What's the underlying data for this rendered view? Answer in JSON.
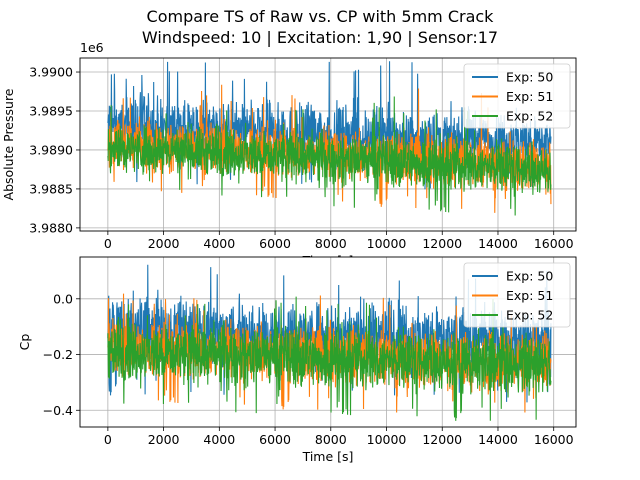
{
  "figure": {
    "title_line1": "Compare TS of Raw vs. CP with 5mm Crack",
    "title_line2": "Windspeed: 10 | Excitation: 1,90 | Sensor:17"
  },
  "chart_data": [
    {
      "type": "line",
      "ylabel": "Absolute Pressure",
      "xlabel": "Time [s]",
      "offset_label": "1e6",
      "xlim": [
        -1000,
        16800
      ],
      "ylim": [
        3.98796,
        3.99018
      ],
      "xticks": [
        0,
        2000,
        4000,
        6000,
        8000,
        10000,
        12000,
        14000,
        16000
      ],
      "xtick_labels": [
        "0",
        "2000",
        "4000",
        "6000",
        "8000",
        "10000",
        "12000",
        "14000",
        "16000"
      ],
      "yticks": [
        3.988,
        3.9885,
        3.989,
        3.9895,
        3.99
      ],
      "ytick_labels": [
        "3.9880",
        "3.9885",
        "3.9890",
        "3.9895",
        "3.9900"
      ],
      "grid": true,
      "legend_position": "top-right",
      "series": [
        {
          "name": "Exp: 50",
          "color": "#1f77b4",
          "x": [
            0,
            15900
          ],
          "upper": [
            3.9899,
            3.9896
          ],
          "lower": [
            3.98872,
            3.98858
          ],
          "peak": 3.99015
        },
        {
          "name": "Exp: 51",
          "color": "#ff7f0e",
          "x": [
            0,
            15900
          ],
          "upper": [
            3.98955,
            3.98935
          ],
          "lower": [
            3.98863,
            3.98825
          ],
          "peak": 3.98985
        },
        {
          "name": "Exp: 52",
          "color": "#2ca02c",
          "x": [
            0,
            15900
          ],
          "upper": [
            3.9895,
            3.98925
          ],
          "lower": [
            3.98858,
            3.98822
          ],
          "peak": 3.9897
        }
      ]
    },
    {
      "type": "line",
      "ylabel": "Cp",
      "xlabel": "Time [s]",
      "xlim": [
        -1000,
        16800
      ],
      "ylim": [
        -0.46,
        0.15
      ],
      "xticks": [
        0,
        2000,
        4000,
        6000,
        8000,
        10000,
        12000,
        14000,
        16000
      ],
      "xtick_labels": [
        "0",
        "2000",
        "4000",
        "6000",
        "8000",
        "10000",
        "12000",
        "14000",
        "16000"
      ],
      "yticks": [
        -0.4,
        -0.2,
        0.0
      ],
      "ytick_labels": [
        "−0.4",
        "−0.2",
        "0.0"
      ],
      "grid": true,
      "legend_position": "top-right",
      "series": [
        {
          "name": "Exp: 50",
          "color": "#1f77b4",
          "x": [
            0,
            15900
          ],
          "upper": [
            0.08,
            0.02
          ],
          "lower": [
            -0.3,
            -0.33
          ],
          "peak": 0.13
        },
        {
          "name": "Exp: 51",
          "color": "#ff7f0e",
          "x": [
            0,
            15900
          ],
          "upper": [
            -0.02,
            -0.06
          ],
          "lower": [
            -0.33,
            -0.4
          ],
          "peak": 0.02
        },
        {
          "name": "Exp: 52",
          "color": "#2ca02c",
          "x": [
            0,
            15900
          ],
          "upper": [
            -0.03,
            -0.07
          ],
          "lower": [
            -0.35,
            -0.41
          ],
          "peak": 0.01
        }
      ]
    }
  ]
}
